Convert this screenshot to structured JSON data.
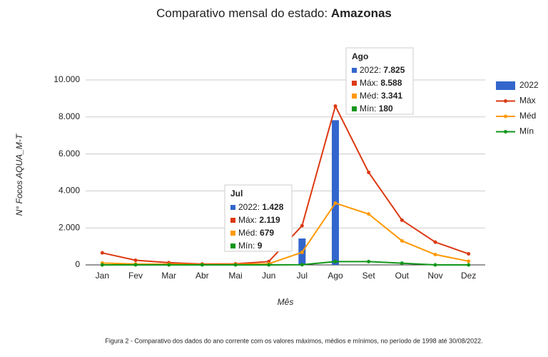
{
  "chart_data": {
    "type": "bar-line",
    "title": "Comparativo mensal do estado:",
    "title_state": "Amazonas",
    "y_label": "N° Focos AQUA_M-T",
    "x_label": "Mês",
    "caption": "Figura 2 - Comparativo dos dados do ano corrente com os valores máximos, médios e mínimos, no período de 1998 até 30/08/2022.",
    "categories": [
      "Jan",
      "Fev",
      "Mar",
      "Abr",
      "Mai",
      "Jun",
      "Jul",
      "Ago",
      "Set",
      "Out",
      "Nov",
      "Dez"
    ],
    "ylim": [
      0,
      10000
    ],
    "yticks": [
      0,
      {
        "value": 2000,
        "label": "2.000"
      },
      {
        "value": 4000,
        "label": "4.000"
      },
      {
        "value": 6000,
        "label": "6.000"
      },
      {
        "value": 8000,
        "label": "8.000"
      },
      {
        "value": 10000,
        "label": "10.000"
      }
    ],
    "grid": true,
    "series": [
      {
        "name": "2022",
        "type": "bar",
        "color": "#3366cc",
        "values": [
          10,
          5,
          10,
          5,
          20,
          60,
          1428,
          7825,
          null,
          null,
          null,
          null
        ],
        "value_labels": [
          null,
          null,
          null,
          null,
          null,
          null,
          "1.428",
          "7.825",
          null,
          null,
          null,
          null
        ]
      },
      {
        "name": "Máx",
        "type": "line",
        "color": "#dc3912",
        "values": [
          650,
          250,
          120,
          50,
          60,
          180,
          2119,
          8588,
          5000,
          2420,
          1230,
          600
        ],
        "value_labels": [
          null,
          null,
          null,
          null,
          null,
          null,
          "2.119",
          "8.588",
          null,
          null,
          null,
          null
        ]
      },
      {
        "name": "Méd",
        "type": "line",
        "color": "#ff9900",
        "values": [
          100,
          50,
          40,
          20,
          30,
          60,
          679,
          3341,
          2750,
          1300,
          560,
          200
        ],
        "value_labels": [
          null,
          null,
          null,
          null,
          null,
          null,
          "679",
          "3.341",
          null,
          null,
          null,
          null
        ]
      },
      {
        "name": "Mín",
        "type": "line",
        "color": "#109618",
        "values": [
          0,
          0,
          0,
          0,
          0,
          0,
          9,
          180,
          180,
          90,
          0,
          0
        ],
        "value_labels": [
          null,
          null,
          null,
          null,
          null,
          null,
          "9",
          "180",
          null,
          null,
          null,
          null
        ]
      }
    ],
    "tooltips": [
      {
        "title": "Jul",
        "labels": [
          "2022:",
          "Máx:",
          "Méd:",
          "Mín:"
        ]
      },
      {
        "title": "Ago",
        "labels": [
          "2022:",
          "Máx:",
          "Méd:",
          "Mín:"
        ]
      }
    ]
  }
}
